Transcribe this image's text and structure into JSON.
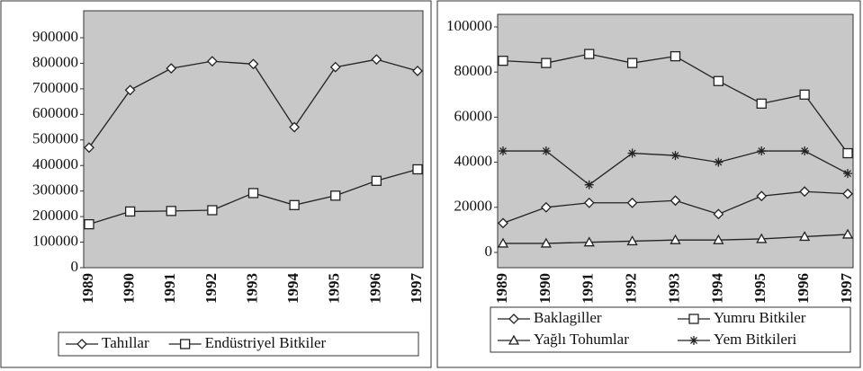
{
  "chart_data": [
    {
      "type": "line",
      "categories": [
        "1989",
        "1990",
        "1991",
        "1992",
        "1993",
        "1994",
        "1995",
        "1996",
        "1997"
      ],
      "ylim": [
        0,
        900000
      ],
      "yticks": [
        0,
        100000,
        200000,
        300000,
        400000,
        500000,
        600000,
        700000,
        800000,
        900000
      ],
      "series": [
        {
          "name": "Tahıllar",
          "color": "#222",
          "marker": "diamond",
          "values": [
            470000,
            695000,
            780000,
            808000,
            797000,
            550000,
            785000,
            815000,
            770000
          ]
        },
        {
          "name": "Endüstriyel Bitkiler",
          "color": "#222",
          "marker": "square",
          "values": [
            170000,
            220000,
            222000,
            225000,
            292000,
            245000,
            282000,
            340000,
            385000
          ]
        }
      ]
    },
    {
      "type": "line",
      "categories": [
        "1989",
        "1990",
        "1991",
        "1992",
        "1993",
        "1994",
        "1995",
        "1996",
        "1997"
      ],
      "ylim": [
        0,
        100000
      ],
      "yticks": [
        0,
        20000,
        40000,
        60000,
        80000,
        100000
      ],
      "series": [
        {
          "name": "Baklagiller",
          "color": "#222",
          "marker": "diamond",
          "values": [
            13000,
            20000,
            22000,
            22000,
            23000,
            17000,
            25000,
            27000,
            26000
          ]
        },
        {
          "name": "Yumru Bitkiler",
          "color": "#222",
          "marker": "square",
          "values": [
            85000,
            84000,
            88000,
            84000,
            87000,
            76000,
            66000,
            70000,
            44000
          ]
        },
        {
          "name": "Yağlı Tohumlar",
          "color": "#222",
          "marker": "triangle",
          "values": [
            4000,
            4000,
            4500,
            5000,
            5500,
            5500,
            6000,
            7000,
            8000
          ]
        },
        {
          "name": "Yem Bitkileri",
          "color": "#222",
          "marker": "asterisk",
          "values": [
            45000,
            45000,
            30000,
            44000,
            43000,
            40000,
            45000,
            45000,
            35000
          ]
        }
      ]
    }
  ]
}
